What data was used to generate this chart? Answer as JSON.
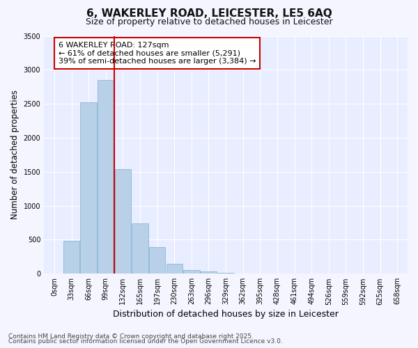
{
  "title_line1": "6, WAKERLEY ROAD, LEICESTER, LE5 6AQ",
  "title_line2": "Size of property relative to detached houses in Leicester",
  "xlabel": "Distribution of detached houses by size in Leicester",
  "ylabel": "Number of detached properties",
  "annotation_line1": "6 WAKERLEY ROAD: 127sqm",
  "annotation_line2": "← 61% of detached houses are smaller (5,291)",
  "annotation_line3": "39% of semi-detached houses are larger (3,384) →",
  "property_sqm": 127,
  "categories": [
    "0sqm",
    "33sqm",
    "66sqm",
    "99sqm",
    "132sqm",
    "165sqm",
    "197sqm",
    "230sqm",
    "263sqm",
    "296sqm",
    "329sqm",
    "362sqm",
    "395sqm",
    "428sqm",
    "461sqm",
    "494sqm",
    "526sqm",
    "559sqm",
    "592sqm",
    "625sqm",
    "658sqm"
  ],
  "values": [
    0,
    480,
    2520,
    2850,
    1540,
    740,
    390,
    150,
    55,
    30,
    10,
    5,
    3,
    2,
    1,
    1,
    0,
    0,
    0,
    0,
    0
  ],
  "bar_color": "#b8d0e8",
  "bar_edge_color": "#7aafd4",
  "vline_color": "#cc0000",
  "vline_x_index": 3.5,
  "ylim": [
    0,
    3500
  ],
  "yticks": [
    0,
    500,
    1000,
    1500,
    2000,
    2500,
    3000,
    3500
  ],
  "background_color": "#f5f5ff",
  "plot_bg_color": "#e8eeff",
  "grid_color": "#ffffff",
  "annotation_box_facecolor": "#ffffff",
  "annotation_box_edgecolor": "#cc0000",
  "footer_line1": "Contains HM Land Registry data © Crown copyright and database right 2025.",
  "footer_line2": "Contains public sector information licensed under the Open Government Licence v3.0.",
  "title1_fontsize": 11,
  "title2_fontsize": 9,
  "xlabel_fontsize": 9,
  "ylabel_fontsize": 8.5,
  "tick_fontsize": 7,
  "annotation_fontsize": 8,
  "footer_fontsize": 6.5
}
